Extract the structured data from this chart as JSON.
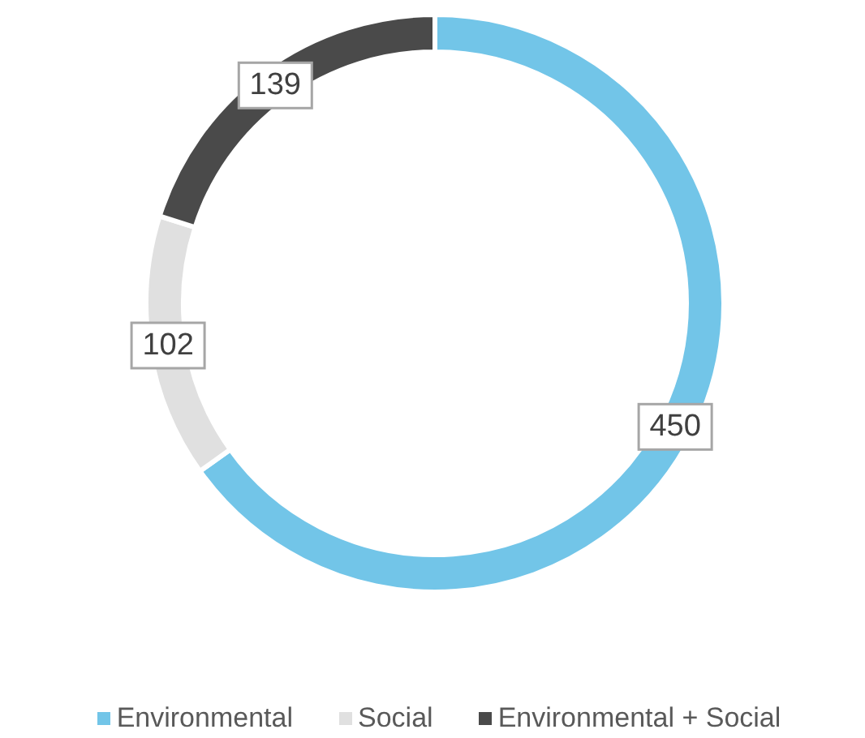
{
  "chart_data": {
    "type": "donut",
    "categories": [
      "Environmental",
      "Social",
      "Environmental + Social"
    ],
    "values": [
      450,
      102,
      139
    ],
    "colors": [
      "#72c5e8",
      "#e0e0e0",
      "#4a4a4a"
    ],
    "data_labels": true,
    "legend": "bottom"
  }
}
